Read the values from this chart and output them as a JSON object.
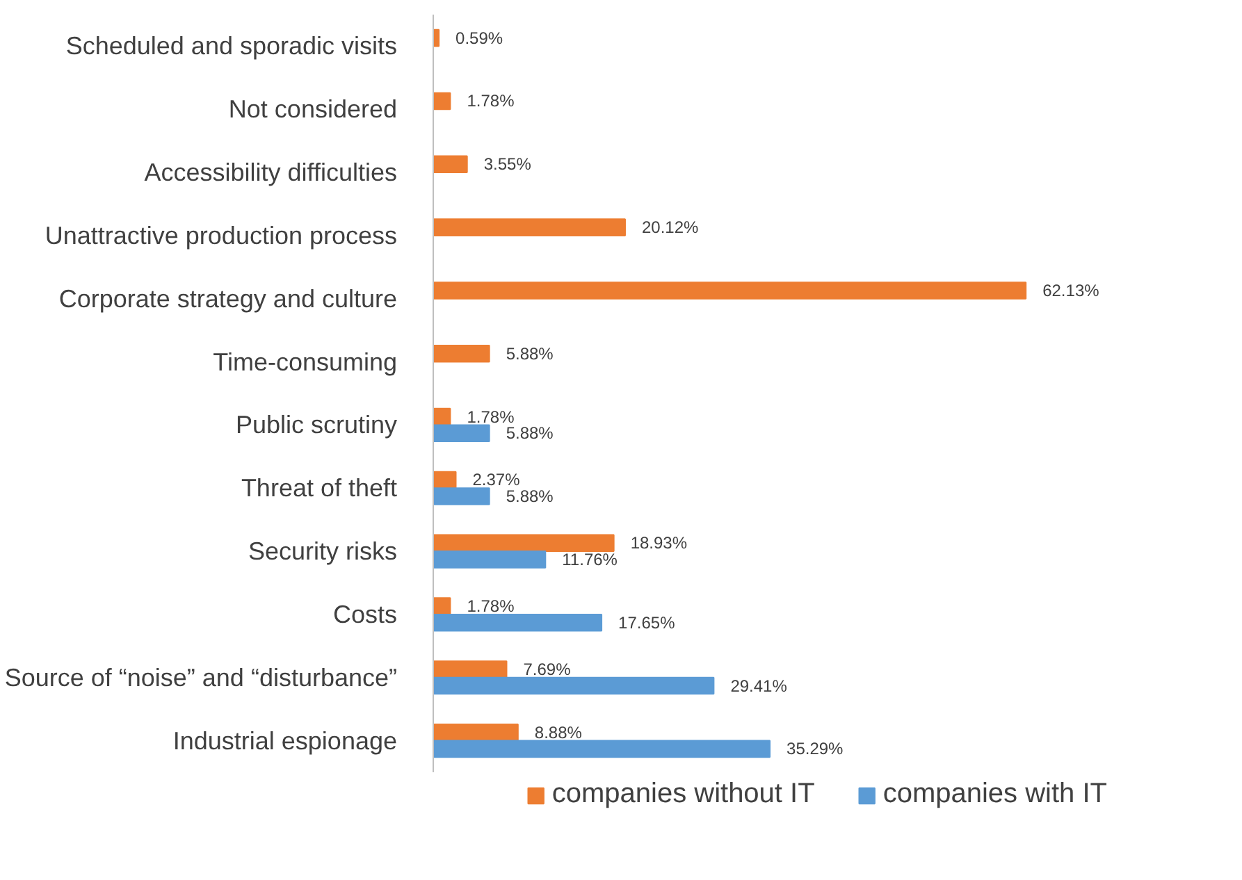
{
  "chart_data": {
    "type": "bar",
    "orientation": "horizontal",
    "categories": [
      "Scheduled and sporadic visits",
      "Not considered",
      "Accessibility difficulties",
      "Unattractive production process",
      "Corporate strategy and culture",
      "Time-consuming",
      "Public scrutiny",
      "Threat of theft",
      "Security risks",
      "Costs",
      "Source of “noise” and “disturbance”",
      "Industrial espionage"
    ],
    "series": [
      {
        "name": "companies without IT",
        "color": "#ed7d31",
        "values": [
          0.59,
          1.78,
          3.55,
          20.12,
          62.13,
          5.88,
          1.78,
          2.37,
          18.93,
          1.78,
          7.69,
          8.88
        ],
        "value_labels": [
          "0.59%",
          "1.78%",
          "3.55%",
          "20.12%",
          "62.13%",
          "5.88%",
          "1.78%",
          "2.37%",
          "18.93%",
          "1.78%",
          "7.69%",
          "8.88%"
        ]
      },
      {
        "name": "companies with IT",
        "color": "#5b9bd5",
        "values": [
          null,
          null,
          null,
          null,
          null,
          null,
          5.88,
          5.88,
          11.76,
          17.65,
          29.41,
          35.29
        ],
        "value_labels": [
          null,
          null,
          null,
          null,
          null,
          null,
          "5.88%",
          "5.88%",
          "11.76%",
          "17.65%",
          "29.41%",
          "35.29%"
        ]
      }
    ],
    "legend": "bottom",
    "grid": false
  }
}
